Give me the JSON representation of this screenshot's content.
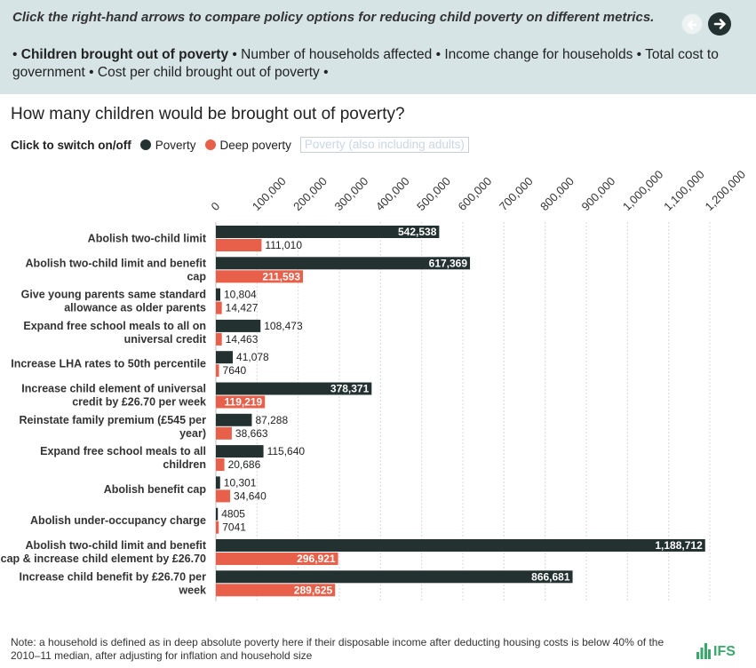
{
  "banner": {
    "instruction": "Click the right-hand arrows to compare policy options for reducing child poverty on different metrics.",
    "metrics": [
      {
        "label": "Children brought out of poverty",
        "active": true
      },
      {
        "label": "Number of households affected",
        "active": false
      },
      {
        "label": "Income change for households",
        "active": false
      },
      {
        "label": "Total cost to government",
        "active": false
      },
      {
        "label": "Cost per child brought out of poverty",
        "active": false
      }
    ],
    "bullet": "•"
  },
  "legend": {
    "label": "Click to switch on/off",
    "items": [
      {
        "name": "Poverty",
        "color": "#233131",
        "on": true
      },
      {
        "name": "Deep poverty",
        "color": "#e8604a",
        "on": true
      },
      {
        "name": "Poverty (also including adults)",
        "color": "#dde6f0",
        "on": false
      }
    ]
  },
  "chart_data": {
    "type": "bar",
    "orientation": "horizontal",
    "title": "How many children would be brought out of poverty?",
    "xlim": [
      0,
      1200000
    ],
    "tick_step": 100000,
    "tick_labels": [
      "0",
      "100,000",
      "200,000",
      "300,000",
      "400,000",
      "500,000",
      "600,000",
      "700,000",
      "800,000",
      "900,000",
      "1,000,000",
      "1,100,000",
      "1,200,000"
    ],
    "categories": [
      "Abolish two-child limit",
      "Abolish two-child limit and benefit cap",
      "Give young parents same standard allowance as older parents",
      "Expand free school meals to all on universal credit",
      "Increase LHA rates to 50th percentile",
      "Increase child element of universal credit by £26.70 per week",
      "Reinstate family premium (£545 per year)",
      "Expand free school meals to all children",
      "Abolish benefit cap",
      "Abolish under-occupancy charge",
      "Abolish two-child limit and benefit cap & increase child element by £26.70",
      "Increase child benefit by £26.70 per week"
    ],
    "series": [
      {
        "name": "Poverty",
        "color": "#233131",
        "values": [
          542538,
          617369,
          10804,
          108473,
          41078,
          378371,
          87288,
          115640,
          10301,
          4805,
          1188712,
          866681
        ],
        "labels": [
          "542,538",
          "617,369",
          "10,804",
          "108,473",
          "41,078",
          "378,371",
          "87,288",
          "115,640",
          "10,301",
          "4805",
          "1,188,712",
          "866,681"
        ]
      },
      {
        "name": "Deep poverty",
        "color": "#e8604a",
        "values": [
          111010,
          211593,
          14427,
          14463,
          7640,
          119219,
          38663,
          20686,
          34640,
          7041,
          296921,
          289625
        ],
        "labels": [
          "111,010",
          "211,593",
          "14,427",
          "14,463",
          "7640",
          "119,219",
          "38,663",
          "20,686",
          "34,640",
          "7041",
          "296,921",
          "289,625"
        ]
      }
    ]
  },
  "footnote": "Note: a household is defined as in deep absolute poverty here if their disposable income after deducting housing costs is below 40% of the 2010–11 median, after adjusting for inflation and household size",
  "logo": {
    "text": "IFS",
    "color": "#3aa86b"
  }
}
